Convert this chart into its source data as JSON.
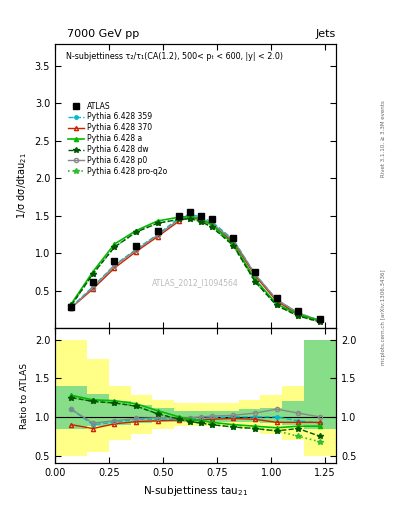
{
  "title_top": "7000 GeV pp",
  "title_right": "Jets",
  "subtitle": "N-subjettiness τ₂/τ₁(CA(1.2), 500< pₜ < 600, |y| < 2.0)",
  "watermark": "ATLAS_2012_I1094564",
  "rivet_label": "Rivet 3.1.10, ≥ 3.3M events",
  "arxiv_label": "mcplots.cern.ch [arXiv:1306.3436]",
  "xlabel": "N-subjettiness tau$_{21}$",
  "ylabel_main": "1/σ dσ/dtau$_{21}$",
  "ylabel_ratio": "Ratio to ATLAS",
  "xlim": [
    0.0,
    1.3
  ],
  "ylim_main": [
    0.0,
    3.8
  ],
  "ylim_ratio": [
    0.4,
    2.15
  ],
  "x": [
    0.075,
    0.175,
    0.275,
    0.375,
    0.475,
    0.575,
    0.625,
    0.675,
    0.725,
    0.825,
    0.925,
    1.025,
    1.125,
    1.225
  ],
  "atlas_y": [
    0.28,
    0.62,
    0.9,
    1.1,
    1.3,
    1.5,
    1.55,
    1.5,
    1.45,
    1.2,
    0.75,
    0.4,
    0.22,
    0.12
  ],
  "p359_y": [
    0.28,
    0.55,
    0.84,
    1.05,
    1.25,
    1.47,
    1.52,
    1.48,
    1.42,
    1.18,
    0.72,
    0.38,
    0.2,
    0.1
  ],
  "p370_y": [
    0.27,
    0.52,
    0.8,
    1.02,
    1.22,
    1.43,
    1.48,
    1.44,
    1.38,
    1.15,
    0.7,
    0.36,
    0.18,
    0.09
  ],
  "pa_y": [
    0.32,
    0.75,
    1.12,
    1.3,
    1.43,
    1.48,
    1.49,
    1.45,
    1.38,
    1.12,
    0.65,
    0.32,
    0.18,
    0.1
  ],
  "pdw_y": [
    0.3,
    0.72,
    1.08,
    1.28,
    1.4,
    1.45,
    1.46,
    1.42,
    1.35,
    1.1,
    0.62,
    0.3,
    0.16,
    0.08
  ],
  "pp0_y": [
    0.27,
    0.54,
    0.83,
    1.04,
    1.24,
    1.45,
    1.5,
    1.46,
    1.4,
    1.17,
    0.72,
    0.38,
    0.2,
    0.1
  ],
  "pproq2o_y": [
    0.3,
    0.72,
    1.08,
    1.28,
    1.4,
    1.45,
    1.46,
    1.42,
    1.35,
    1.1,
    0.62,
    0.3,
    0.16,
    0.08
  ],
  "ratio_x": [
    0.075,
    0.175,
    0.275,
    0.375,
    0.475,
    0.575,
    0.625,
    0.675,
    0.725,
    0.825,
    0.925,
    1.025,
    1.125,
    1.225
  ],
  "ratio_p359": [
    1.1,
    0.9,
    0.93,
    0.97,
    0.97,
    0.98,
    0.98,
    0.98,
    0.99,
    1.0,
    1.0,
    1.0,
    0.95,
    0.92
  ],
  "ratio_p370": [
    0.9,
    0.85,
    0.91,
    0.94,
    0.95,
    0.96,
    0.96,
    0.96,
    0.97,
    0.98,
    0.97,
    0.93,
    0.93,
    0.93
  ],
  "ratio_pa": [
    1.28,
    1.22,
    1.21,
    1.17,
    1.08,
    1.0,
    0.97,
    0.95,
    0.93,
    0.9,
    0.88,
    0.86,
    0.88,
    0.88
  ],
  "ratio_pdw": [
    1.25,
    1.2,
    1.18,
    1.14,
    1.04,
    0.97,
    0.94,
    0.92,
    0.9,
    0.87,
    0.85,
    0.82,
    0.85,
    0.75
  ],
  "ratio_pp0": [
    1.1,
    0.92,
    0.95,
    0.98,
    0.99,
    0.99,
    0.99,
    1.0,
    1.01,
    1.02,
    1.05,
    1.1,
    1.05,
    1.0
  ],
  "ratio_pproq2o": [
    1.25,
    1.2,
    1.18,
    1.14,
    1.04,
    0.97,
    0.94,
    0.92,
    0.9,
    0.87,
    0.85,
    0.82,
    0.75,
    0.68
  ],
  "band_edges": [
    0.0,
    0.15,
    0.25,
    0.35,
    0.45,
    0.55,
    0.65,
    0.75,
    0.85,
    0.95,
    1.05,
    1.15,
    1.3
  ],
  "band_green_lo": [
    0.85,
    0.88,
    0.9,
    0.92,
    0.93,
    0.94,
    0.94,
    0.94,
    0.93,
    0.92,
    0.9,
    0.85,
    0.7
  ],
  "band_green_hi": [
    1.4,
    1.3,
    1.2,
    1.15,
    1.12,
    1.08,
    1.08,
    1.08,
    1.1,
    1.12,
    1.2,
    2.0,
    2.0
  ],
  "band_yellow_lo": [
    0.5,
    0.55,
    0.7,
    0.78,
    0.85,
    0.88,
    0.88,
    0.88,
    0.85,
    0.78,
    0.7,
    0.5,
    0.4
  ],
  "band_yellow_hi": [
    2.0,
    1.75,
    1.4,
    1.28,
    1.22,
    1.18,
    1.18,
    1.18,
    1.22,
    1.28,
    1.4,
    2.0,
    2.0
  ],
  "color_359": "#00bbcc",
  "color_370": "#cc2200",
  "color_a": "#00bb00",
  "color_dw": "#005500",
  "color_p0": "#888888",
  "color_proq2o": "#33bb33"
}
